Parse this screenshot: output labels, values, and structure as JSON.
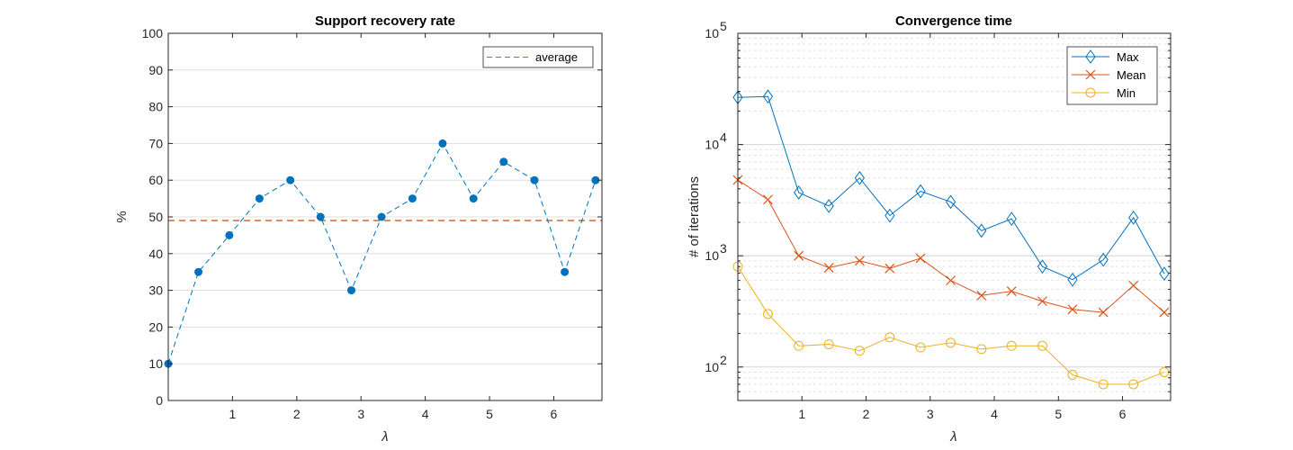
{
  "chart_data": [
    {
      "type": "line",
      "title": "Support recovery rate",
      "xlabel": "λ",
      "ylabel": "%",
      "xlim": [
        0,
        6.75
      ],
      "ylim": [
        0,
        100
      ],
      "xticks": [
        1,
        2,
        3,
        4,
        5,
        6
      ],
      "yticks": [
        0,
        10,
        20,
        30,
        40,
        50,
        60,
        70,
        80,
        90,
        100
      ],
      "grid": "y-major",
      "legend_position": "top-right",
      "x": [
        0,
        0.47,
        0.95,
        1.42,
        1.9,
        2.37,
        2.85,
        3.32,
        3.8,
        4.27,
        4.75,
        5.22,
        5.7,
        6.17,
        6.65
      ],
      "series": [
        {
          "values": [
            10,
            35,
            45,
            55,
            60,
            50,
            30,
            50,
            55,
            70,
            55,
            65,
            60,
            35,
            60
          ],
          "color": "#0072BD",
          "style": "dashed",
          "marker": "filled-circle"
        }
      ],
      "reference_lines": [
        {
          "name": "average",
          "y": 49,
          "color": "#D95319",
          "style": "dashed"
        }
      ]
    },
    {
      "type": "line",
      "title": "Convergence time",
      "xlabel": "λ",
      "ylabel": "# of iterations",
      "xlim": [
        0,
        6.75
      ],
      "ylim": [
        50,
        100000
      ],
      "yscale": "log",
      "xticks": [
        1,
        2,
        3,
        4,
        5,
        6
      ],
      "yticks": [
        {
          "value": 100,
          "base": "10",
          "exp": "2"
        },
        {
          "value": 1000,
          "base": "10",
          "exp": "3"
        },
        {
          "value": 10000,
          "base": "10",
          "exp": "4"
        },
        {
          "value": 100000,
          "base": "10",
          "exp": "5"
        }
      ],
      "grid": "y-major-and-minor",
      "legend_position": "top-right",
      "x": [
        0,
        0.47,
        0.95,
        1.42,
        1.9,
        2.37,
        2.85,
        3.32,
        3.8,
        4.27,
        4.75,
        5.22,
        5.7,
        6.17,
        6.65
      ],
      "series": [
        {
          "name": "Max",
          "values": [
            26500,
            27000,
            3700,
            2800,
            5000,
            2300,
            3800,
            3050,
            1680,
            2150,
            800,
            610,
            920,
            2200,
            690
          ],
          "color": "#0072BD",
          "marker": "diamond"
        },
        {
          "name": "Mean",
          "values": [
            4800,
            3200,
            1000,
            780,
            900,
            770,
            950,
            600,
            440,
            480,
            390,
            330,
            310,
            540,
            310
          ],
          "color": "#D95319",
          "marker": "cross"
        },
        {
          "name": "Min",
          "values": [
            800,
            300,
            155,
            160,
            140,
            185,
            150,
            165,
            145,
            155,
            155,
            85,
            70,
            70,
            90
          ],
          "color": "#EDB120",
          "marker": "open-circle"
        }
      ]
    }
  ]
}
